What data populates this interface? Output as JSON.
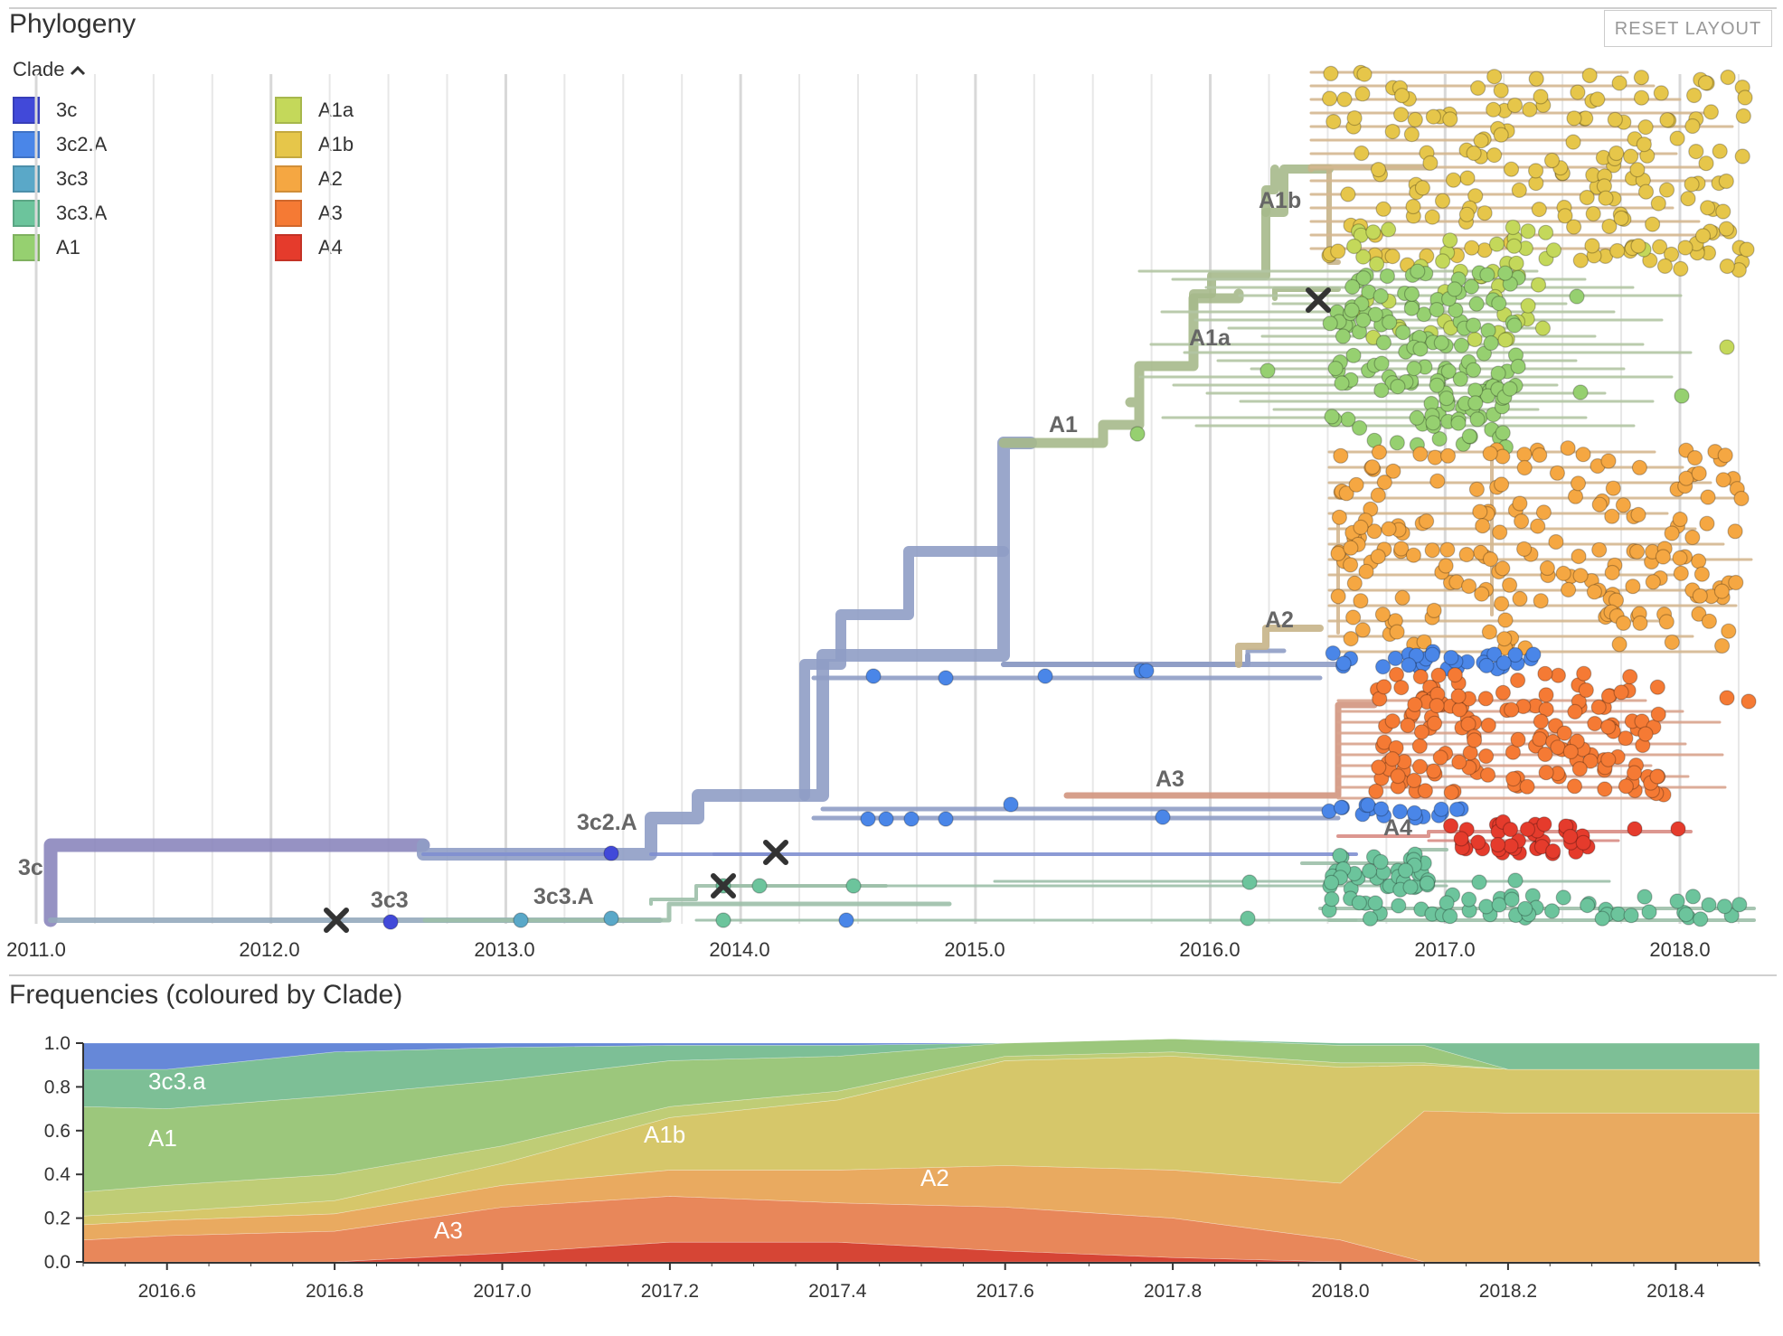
{
  "phylogeny": {
    "title": "Phylogeny",
    "reset_label": "RESET LAYOUT",
    "legend_title": "Clade",
    "legend": [
      {
        "label": "3c",
        "color": "#4149d9"
      },
      {
        "label": "3c2.A",
        "color": "#4a86e8"
      },
      {
        "label": "3c3",
        "color": "#5aa8c8"
      },
      {
        "label": "3c3.A",
        "color": "#6cc49c"
      },
      {
        "label": "A1",
        "color": "#96d070"
      },
      {
        "label": "A1a",
        "color": "#c4d85a"
      },
      {
        "label": "A1b",
        "color": "#e6c64a"
      },
      {
        "label": "A2",
        "color": "#f5a742"
      },
      {
        "label": "A3",
        "color": "#f57a34"
      },
      {
        "label": "A4",
        "color": "#e53b2c"
      }
    ],
    "x_ticks": [
      "2011.0",
      "2012.0",
      "2013.0",
      "2014.0",
      "2015.0",
      "2016.0",
      "2017.0",
      "2018.0"
    ],
    "branch_labels": [
      "3c",
      "3c3",
      "3c3.A",
      "3c2.A",
      "A1",
      "A1a",
      "A1b",
      "A2",
      "A3",
      "A4"
    ]
  },
  "frequencies": {
    "title": "Frequencies (coloured by Clade)",
    "stream_labels": [
      "3c3.a",
      "A1",
      "A1b",
      "A2",
      "A3"
    ]
  },
  "chart_data": [
    {
      "type": "scatter",
      "title": "Phylogeny",
      "xlabel": "",
      "ylabel": "",
      "x_ticks": [
        2011.0,
        2012.0,
        2013.0,
        2014.0,
        2015.0,
        2016.0,
        2017.0,
        2018.0
      ],
      "xlim": [
        2011.0,
        2018.3
      ],
      "legend_placement": "top-left",
      "series": [
        {
          "name": "3c",
          "color": "#4149d9"
        },
        {
          "name": "3c2.A",
          "color": "#4a86e8"
        },
        {
          "name": "3c3",
          "color": "#5aa8c8"
        },
        {
          "name": "3c3.A",
          "color": "#6cc49c"
        },
        {
          "name": "A1",
          "color": "#96d070"
        },
        {
          "name": "A1a",
          "color": "#c4d85a"
        },
        {
          "name": "A1b",
          "color": "#e6c64a"
        },
        {
          "name": "A2",
          "color": "#f5a742"
        },
        {
          "name": "A3",
          "color": "#f57a34"
        },
        {
          "name": "A4",
          "color": "#e53b2c"
        }
      ],
      "clade_labels": [
        {
          "label": "3c",
          "x": 2011.0
        },
        {
          "label": "3c3",
          "x": 2012.5
        },
        {
          "label": "3c3.A",
          "x": 2013.25
        },
        {
          "label": "3c2.A",
          "x": 2013.4
        },
        {
          "label": "A1",
          "x": 2015.3
        },
        {
          "label": "A1a",
          "x": 2015.9
        },
        {
          "label": "A1b",
          "x": 2016.3
        },
        {
          "label": "A2",
          "x": 2016.25
        },
        {
          "label": "A3",
          "x": 2015.8
        },
        {
          "label": "A4",
          "x": 2016.75
        }
      ]
    },
    {
      "type": "area",
      "title": "Frequencies (coloured by Clade)",
      "xlabel": "",
      "ylabel": "",
      "stacked": true,
      "x": [
        2016.5,
        2016.6,
        2016.8,
        2017.0,
        2017.2,
        2017.4,
        2017.6,
        2017.8,
        2018.0,
        2018.1,
        2018.2,
        2018.5
      ],
      "xlim": [
        2016.5,
        2018.5
      ],
      "ylim": [
        0,
        1
      ],
      "x_ticks": [
        2016.6,
        2016.8,
        2017.0,
        2017.2,
        2017.4,
        2017.6,
        2017.8,
        2018.0,
        2018.2,
        2018.4
      ],
      "y_ticks": [
        0.0,
        0.2,
        0.4,
        0.6,
        0.8,
        1.0
      ],
      "series": [
        {
          "name": "A4",
          "color": "#d64535",
          "values": [
            0.0,
            0.0,
            0.0,
            0.04,
            0.09,
            0.09,
            0.05,
            0.02,
            0.0,
            0.0,
            0.0,
            0.0
          ]
        },
        {
          "name": "A3",
          "color": "#e8875a",
          "values": [
            0.1,
            0.12,
            0.14,
            0.21,
            0.21,
            0.18,
            0.2,
            0.18,
            0.1,
            0.0,
            0.0,
            0.0
          ]
        },
        {
          "name": "A2",
          "color": "#e9aa60",
          "values": [
            0.07,
            0.07,
            0.08,
            0.1,
            0.12,
            0.15,
            0.19,
            0.22,
            0.26,
            0.69,
            0.68,
            0.68
          ]
        },
        {
          "name": "A1b",
          "color": "#d6c76a",
          "values": [
            0.04,
            0.04,
            0.06,
            0.1,
            0.24,
            0.32,
            0.48,
            0.52,
            0.53,
            0.21,
            0.2,
            0.2
          ]
        },
        {
          "name": "A1a",
          "color": "#bfcd76",
          "values": [
            0.11,
            0.12,
            0.12,
            0.08,
            0.05,
            0.04,
            0.02,
            0.02,
            0.02,
            0.01,
            0.0,
            0.0
          ]
        },
        {
          "name": "A1",
          "color": "#9cc77c",
          "values": [
            0.39,
            0.35,
            0.36,
            0.3,
            0.21,
            0.16,
            0.06,
            0.06,
            0.08,
            0.08,
            0.0,
            0.0
          ]
        },
        {
          "name": "3c3.A",
          "color": "#7dbf96",
          "values": [
            0.17,
            0.18,
            0.2,
            0.15,
            0.07,
            0.05,
            0.0,
            0.0,
            0.01,
            0.01,
            0.12,
            0.12
          ]
        },
        {
          "name": "3c2.A",
          "color": "#6688d8",
          "values": [
            0.12,
            0.12,
            0.04,
            0.02,
            0.01,
            0.01,
            0.0,
            0.0,
            0.0,
            0.0,
            0.0,
            0.0
          ]
        }
      ],
      "stream_labels": [
        {
          "label": "3c3.a",
          "x": 2016.58,
          "y": 0.8
        },
        {
          "label": "A1",
          "x": 2016.58,
          "y": 0.56
        },
        {
          "label": "A1b",
          "x": 2017.18,
          "y": 0.58
        },
        {
          "label": "A2",
          "x": 2017.55,
          "y": 0.37
        },
        {
          "label": "A3",
          "x": 2016.92,
          "y": 0.15
        }
      ]
    }
  ]
}
